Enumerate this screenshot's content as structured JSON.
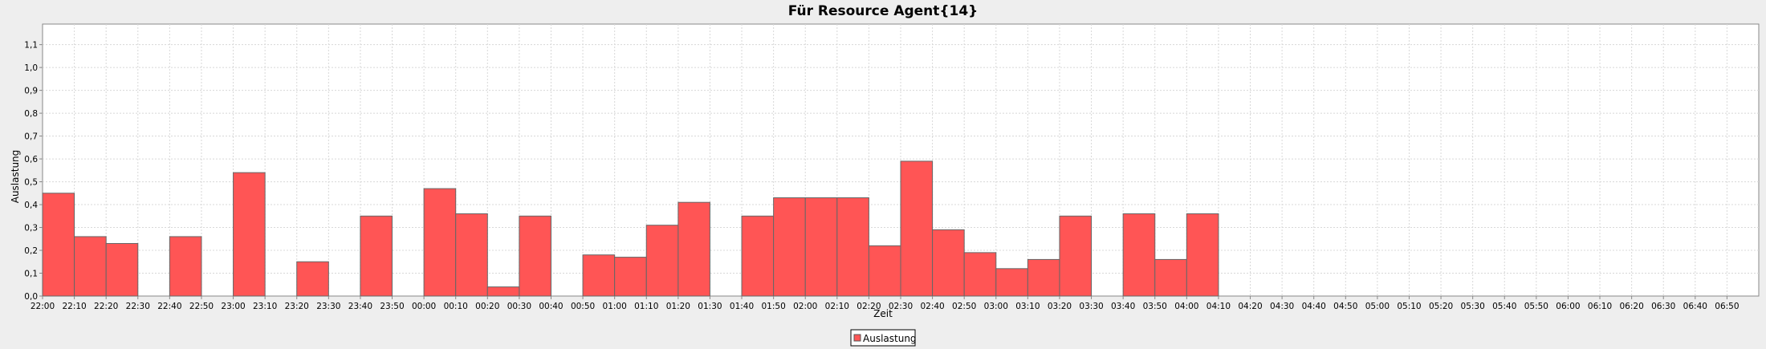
{
  "chart_data": {
    "type": "bar",
    "title": "Für Resource Agent{14}",
    "xlabel": "Zeit",
    "ylabel": "Auslastung",
    "ylim": [
      0,
      1.19
    ],
    "yticks": [
      "0,0",
      "0,1",
      "0,2",
      "0,3",
      "0,4",
      "0,5",
      "0,6",
      "0,7",
      "0,8",
      "0,9",
      "1,0",
      "1,1"
    ],
    "grid": true,
    "legend_position": "bottom-center",
    "series": [
      {
        "name": "Auslastung",
        "color": "#ff5555",
        "values": [
          {
            "x": "22:00",
            "y": 0.45
          },
          {
            "x": "22:10",
            "y": 0.26
          },
          {
            "x": "22:20",
            "y": 0.23
          },
          {
            "x": "22:40",
            "y": 0.26
          },
          {
            "x": "23:00",
            "y": 0.54
          },
          {
            "x": "23:20",
            "y": 0.15
          },
          {
            "x": "23:40",
            "y": 0.35
          },
          {
            "x": "00:00",
            "y": 0.47
          },
          {
            "x": "00:10",
            "y": 0.36
          },
          {
            "x": "00:20",
            "y": 0.04
          },
          {
            "x": "00:30",
            "y": 0.35
          },
          {
            "x": "00:50",
            "y": 0.18
          },
          {
            "x": "01:00",
            "y": 0.17
          },
          {
            "x": "01:10",
            "y": 0.31
          },
          {
            "x": "01:20",
            "y": 0.41
          },
          {
            "x": "01:40",
            "y": 0.35
          },
          {
            "x": "01:50",
            "y": 0.43
          },
          {
            "x": "02:00",
            "y": 0.43
          },
          {
            "x": "02:10",
            "y": 0.43
          },
          {
            "x": "02:20",
            "y": 0.22
          },
          {
            "x": "02:30",
            "y": 0.59
          },
          {
            "x": "02:40",
            "y": 0.29
          },
          {
            "x": "02:50",
            "y": 0.19
          },
          {
            "x": "03:00",
            "y": 0.12
          },
          {
            "x": "03:10",
            "y": 0.16
          },
          {
            "x": "03:20",
            "y": 0.35
          },
          {
            "x": "03:40",
            "y": 0.36
          },
          {
            "x": "03:50",
            "y": 0.16
          },
          {
            "x": "04:00",
            "y": 0.36
          }
        ]
      }
    ],
    "xticks": [
      "22:00",
      "22:10",
      "22:20",
      "22:30",
      "22:40",
      "22:50",
      "23:00",
      "23:10",
      "23:20",
      "23:30",
      "23:40",
      "23:50",
      "00:00",
      "00:10",
      "00:20",
      "00:30",
      "00:40",
      "00:50",
      "01:00",
      "01:10",
      "01:20",
      "01:30",
      "01:40",
      "01:50",
      "02:00",
      "02:10",
      "02:20",
      "02:30",
      "02:40",
      "02:50",
      "03:00",
      "03:10",
      "03:20",
      "03:30",
      "03:40",
      "03:50",
      "04:00",
      "04:10",
      "04:20",
      "04:30",
      "04:40",
      "04:50",
      "05:00",
      "05:10",
      "05:20",
      "05:30",
      "05:40",
      "05:50",
      "06:00",
      "06:10",
      "06:20",
      "06:30",
      "06:40",
      "06:50"
    ]
  }
}
